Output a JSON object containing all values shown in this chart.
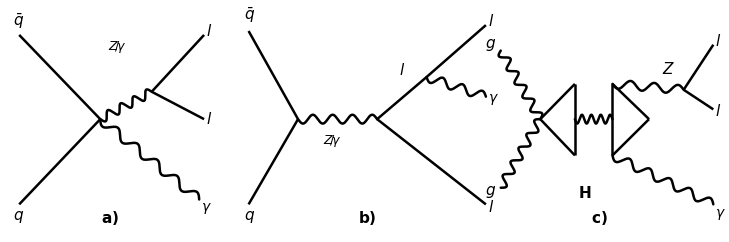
{
  "background_color": "#ffffff",
  "fig_width": 7.29,
  "fig_height": 2.42,
  "dpi": 100,
  "line_color": "#000000",
  "line_width": 1.8,
  "font_size": 10
}
